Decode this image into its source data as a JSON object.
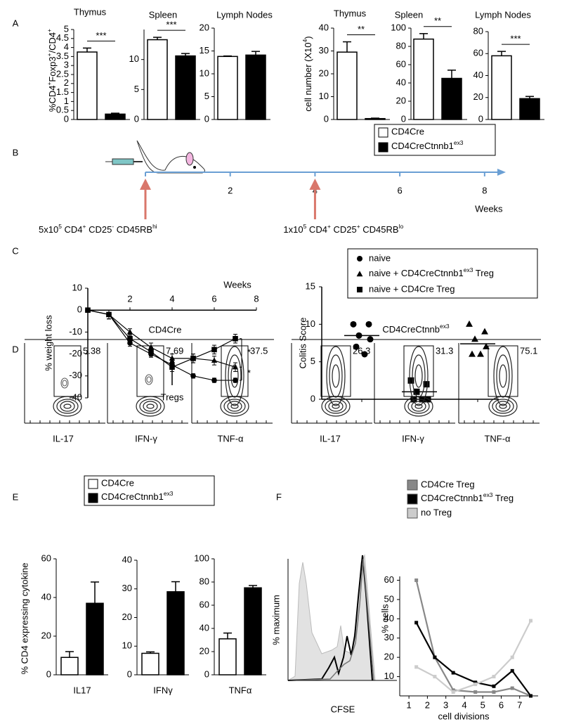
{
  "panel_letters": [
    "A",
    "B",
    "C",
    "D",
    "E",
    "F"
  ],
  "legend_A": {
    "entries": [
      "CD4Cre",
      [
        "CD4CreCtnnb1",
        "ex3"
      ]
    ],
    "colors": [
      "#ffffff",
      "#000000"
    ]
  },
  "legend_E": {
    "entries": [
      "CD4Cre",
      [
        "CD4CreCtnnb1",
        "ex3"
      ]
    ],
    "colors": [
      "#ffffff",
      "#000000"
    ]
  },
  "chart_data": [
    {
      "type": "bar",
      "title": "Thymus",
      "ylabel": [
        "%CD4",
        "+",
        "Foxp3",
        "+",
        "/CD4",
        "+"
      ],
      "values": [
        3.75,
        0.3
      ],
      "errors": [
        0.22,
        0.05
      ],
      "ylim": [
        0,
        5
      ],
      "yticks": [
        0,
        0.5,
        1,
        1.5,
        2,
        2.5,
        3,
        3.5,
        4,
        4.5,
        5
      ],
      "significance": "***"
    },
    {
      "type": "bar",
      "title": "Spleen",
      "values": [
        13.3,
        10.6
      ],
      "errors": [
        0.4,
        0.4
      ],
      "ylim": [
        0,
        15
      ],
      "yticks": [
        0,
        5,
        10
      ],
      "significance": "***"
    },
    {
      "type": "bar",
      "title": "Lymph Nodes",
      "values": [
        13.8,
        14.1
      ],
      "errors": [
        0.1,
        0.8
      ],
      "ylim": [
        0,
        20
      ],
      "yticks": [
        0,
        5,
        10,
        15,
        20
      ]
    },
    {
      "type": "bar",
      "title": "Thymus",
      "ylabel": [
        "cell number (X10",
        "4",
        ")"
      ],
      "values": [
        29.5,
        0.4
      ],
      "errors": [
        4.5,
        0.2
      ],
      "ylim": [
        0,
        40
      ],
      "yticks": [
        0,
        10,
        20,
        30,
        40
      ],
      "significance": "**"
    },
    {
      "type": "bar",
      "title": "Spleen",
      "values": [
        88,
        45
      ],
      "errors": [
        6,
        9
      ],
      "ylim": [
        0,
        100
      ],
      "yticks": [
        0,
        20,
        40,
        60,
        80,
        100
      ],
      "significance": "**"
    },
    {
      "type": "bar",
      "title": "Lymph Nodes",
      "values": [
        58,
        19
      ],
      "errors": [
        4,
        2
      ],
      "ylim": [
        0,
        80
      ],
      "yticks": [
        0,
        20,
        40,
        60,
        80
      ],
      "significance": "***"
    },
    {
      "type": "timeline",
      "xlim": [
        0,
        8.5
      ],
      "xticks": [
        2,
        4,
        6,
        8
      ],
      "xlabel": "Weeks",
      "annotations": [
        {
          "x": 0,
          "text": [
            "5x10",
            "5",
            " CD4",
            "+",
            " CD25",
            "-",
            " CD45RB",
            "hi"
          ]
        },
        {
          "x": 4,
          "text": [
            "1x10",
            "5",
            " CD4",
            "+",
            " CD25",
            "+",
            " CD45RB",
            "lo"
          ]
        }
      ]
    },
    {
      "type": "line",
      "ylabel": "% weight loss",
      "xlabel": "Weeks",
      "x": [
        0,
        1,
        2,
        3,
        4,
        5,
        6,
        7
      ],
      "xlim": [
        0,
        8
      ],
      "xticks": [
        2,
        4,
        6,
        8
      ],
      "ylim": [
        -40,
        10
      ],
      "yticks": [
        10,
        0,
        -10,
        -20,
        -30,
        -40
      ],
      "series": [
        {
          "name": "naive",
          "marker": "circle",
          "color": "#000000",
          "values": [
            0,
            -2,
            -15,
            -20,
            -25,
            -30,
            -32,
            -32
          ],
          "errors": [
            0.5,
            2,
            1.5,
            1.5,
            1.5,
            1,
            1,
            1
          ]
        },
        {
          "name": [
            "naive + CD4CreCtnnb1",
            "ex3",
            " Treg"
          ],
          "marker": "triangle",
          "color": "#000000",
          "values": [
            0,
            -2,
            -10,
            -17,
            -22,
            -22,
            -23,
            -26
          ],
          "errors": [
            0.5,
            2,
            1.5,
            2,
            2,
            2,
            2,
            2
          ]
        },
        {
          "name": "naive + CD4Cre Treg",
          "marker": "square",
          "color": "#000000",
          "values": [
            0,
            -2,
            -13,
            -19,
            -26,
            -22,
            -18,
            -13
          ],
          "errors": [
            0.5,
            2,
            2,
            2,
            2,
            2,
            2,
            2
          ]
        }
      ],
      "annotations": [
        {
          "x": 4,
          "text": "Tregs"
        }
      ],
      "significance": [
        "*",
        "*"
      ]
    },
    {
      "type": "dot",
      "ylabel": "Colitis Score",
      "ylim": [
        0,
        15
      ],
      "yticks": [
        0,
        5,
        10,
        15
      ],
      "groups": [
        {
          "marker": "circle",
          "values": [
            10,
            10,
            8.5,
            8,
            7,
            6
          ]
        },
        {
          "marker": "square",
          "values": [
            2.5,
            2,
            1,
            0,
            0,
            0
          ]
        },
        {
          "marker": "triangle",
          "values": [
            10,
            9,
            8,
            7,
            6,
            6
          ]
        }
      ],
      "means": [
        8.5,
        1,
        7.4
      ]
    },
    {
      "type": "bar",
      "category": "IL17",
      "ylabel": "% CD4 expressing cytokine",
      "values": [
        9,
        37
      ],
      "errors": [
        3,
        11
      ],
      "ylim": [
        0,
        60
      ],
      "yticks": [
        0,
        20,
        40,
        60
      ]
    },
    {
      "type": "bar",
      "category": "IFNγ",
      "values": [
        7.5,
        29
      ],
      "errors": [
        0.5,
        3.5
      ],
      "ylim": [
        0,
        40
      ],
      "yticks": [
        0,
        10,
        20,
        30,
        40
      ]
    },
    {
      "type": "bar",
      "category": "TNFα",
      "values": [
        31,
        75
      ],
      "errors": [
        5,
        2
      ],
      "ylim": [
        0,
        100
      ],
      "yticks": [
        0,
        20,
        40,
        60,
        80,
        100
      ]
    },
    {
      "type": "line",
      "ylabel": "% cells",
      "xlabel": "cell divisions",
      "x": [
        1.4,
        2.4,
        3.4,
        4.6,
        5.6,
        6.6,
        7.6
      ],
      "xlim": [
        0.5,
        8
      ],
      "xticks": [
        1,
        2,
        3,
        4,
        5,
        6,
        7
      ],
      "ylim": [
        0,
        62
      ],
      "yticks": [
        10,
        20,
        30,
        40,
        50,
        60
      ],
      "series": [
        {
          "name": "CD4Cre Treg",
          "color": "#888888",
          "values": [
            60,
            20,
            3,
            2,
            2,
            4,
            0
          ]
        },
        {
          "name": [
            "CD4CreCtnnb1",
            "ex3",
            " Treg"
          ],
          "color": "#000000",
          "values": [
            38,
            20,
            12,
            7,
            5,
            13,
            0
          ]
        },
        {
          "name": "no Treg",
          "color": "#cccccc",
          "values": [
            15,
            10,
            2,
            6,
            10,
            20,
            39
          ]
        }
      ]
    }
  ],
  "flow": {
    "groups": [
      {
        "title": "CD4Cre"
      },
      {
        "title": [
          "CD4CreCtnnb",
          "ex3"
        ]
      }
    ],
    "plots": [
      {
        "label": "IL-17",
        "gate": "5.38"
      },
      {
        "label": "IFN-γ",
        "gate": "7.69"
      },
      {
        "label": "TNF-α",
        "gate": "37.5"
      },
      {
        "label": "IL-17",
        "gate": "26.3"
      },
      {
        "label": "IFN-γ",
        "gate": "31.3"
      },
      {
        "label": "TNF-α",
        "gate": "75.1"
      }
    ]
  },
  "histogram": {
    "ylabel": "% maximum",
    "xlabel": "CFSE"
  }
}
